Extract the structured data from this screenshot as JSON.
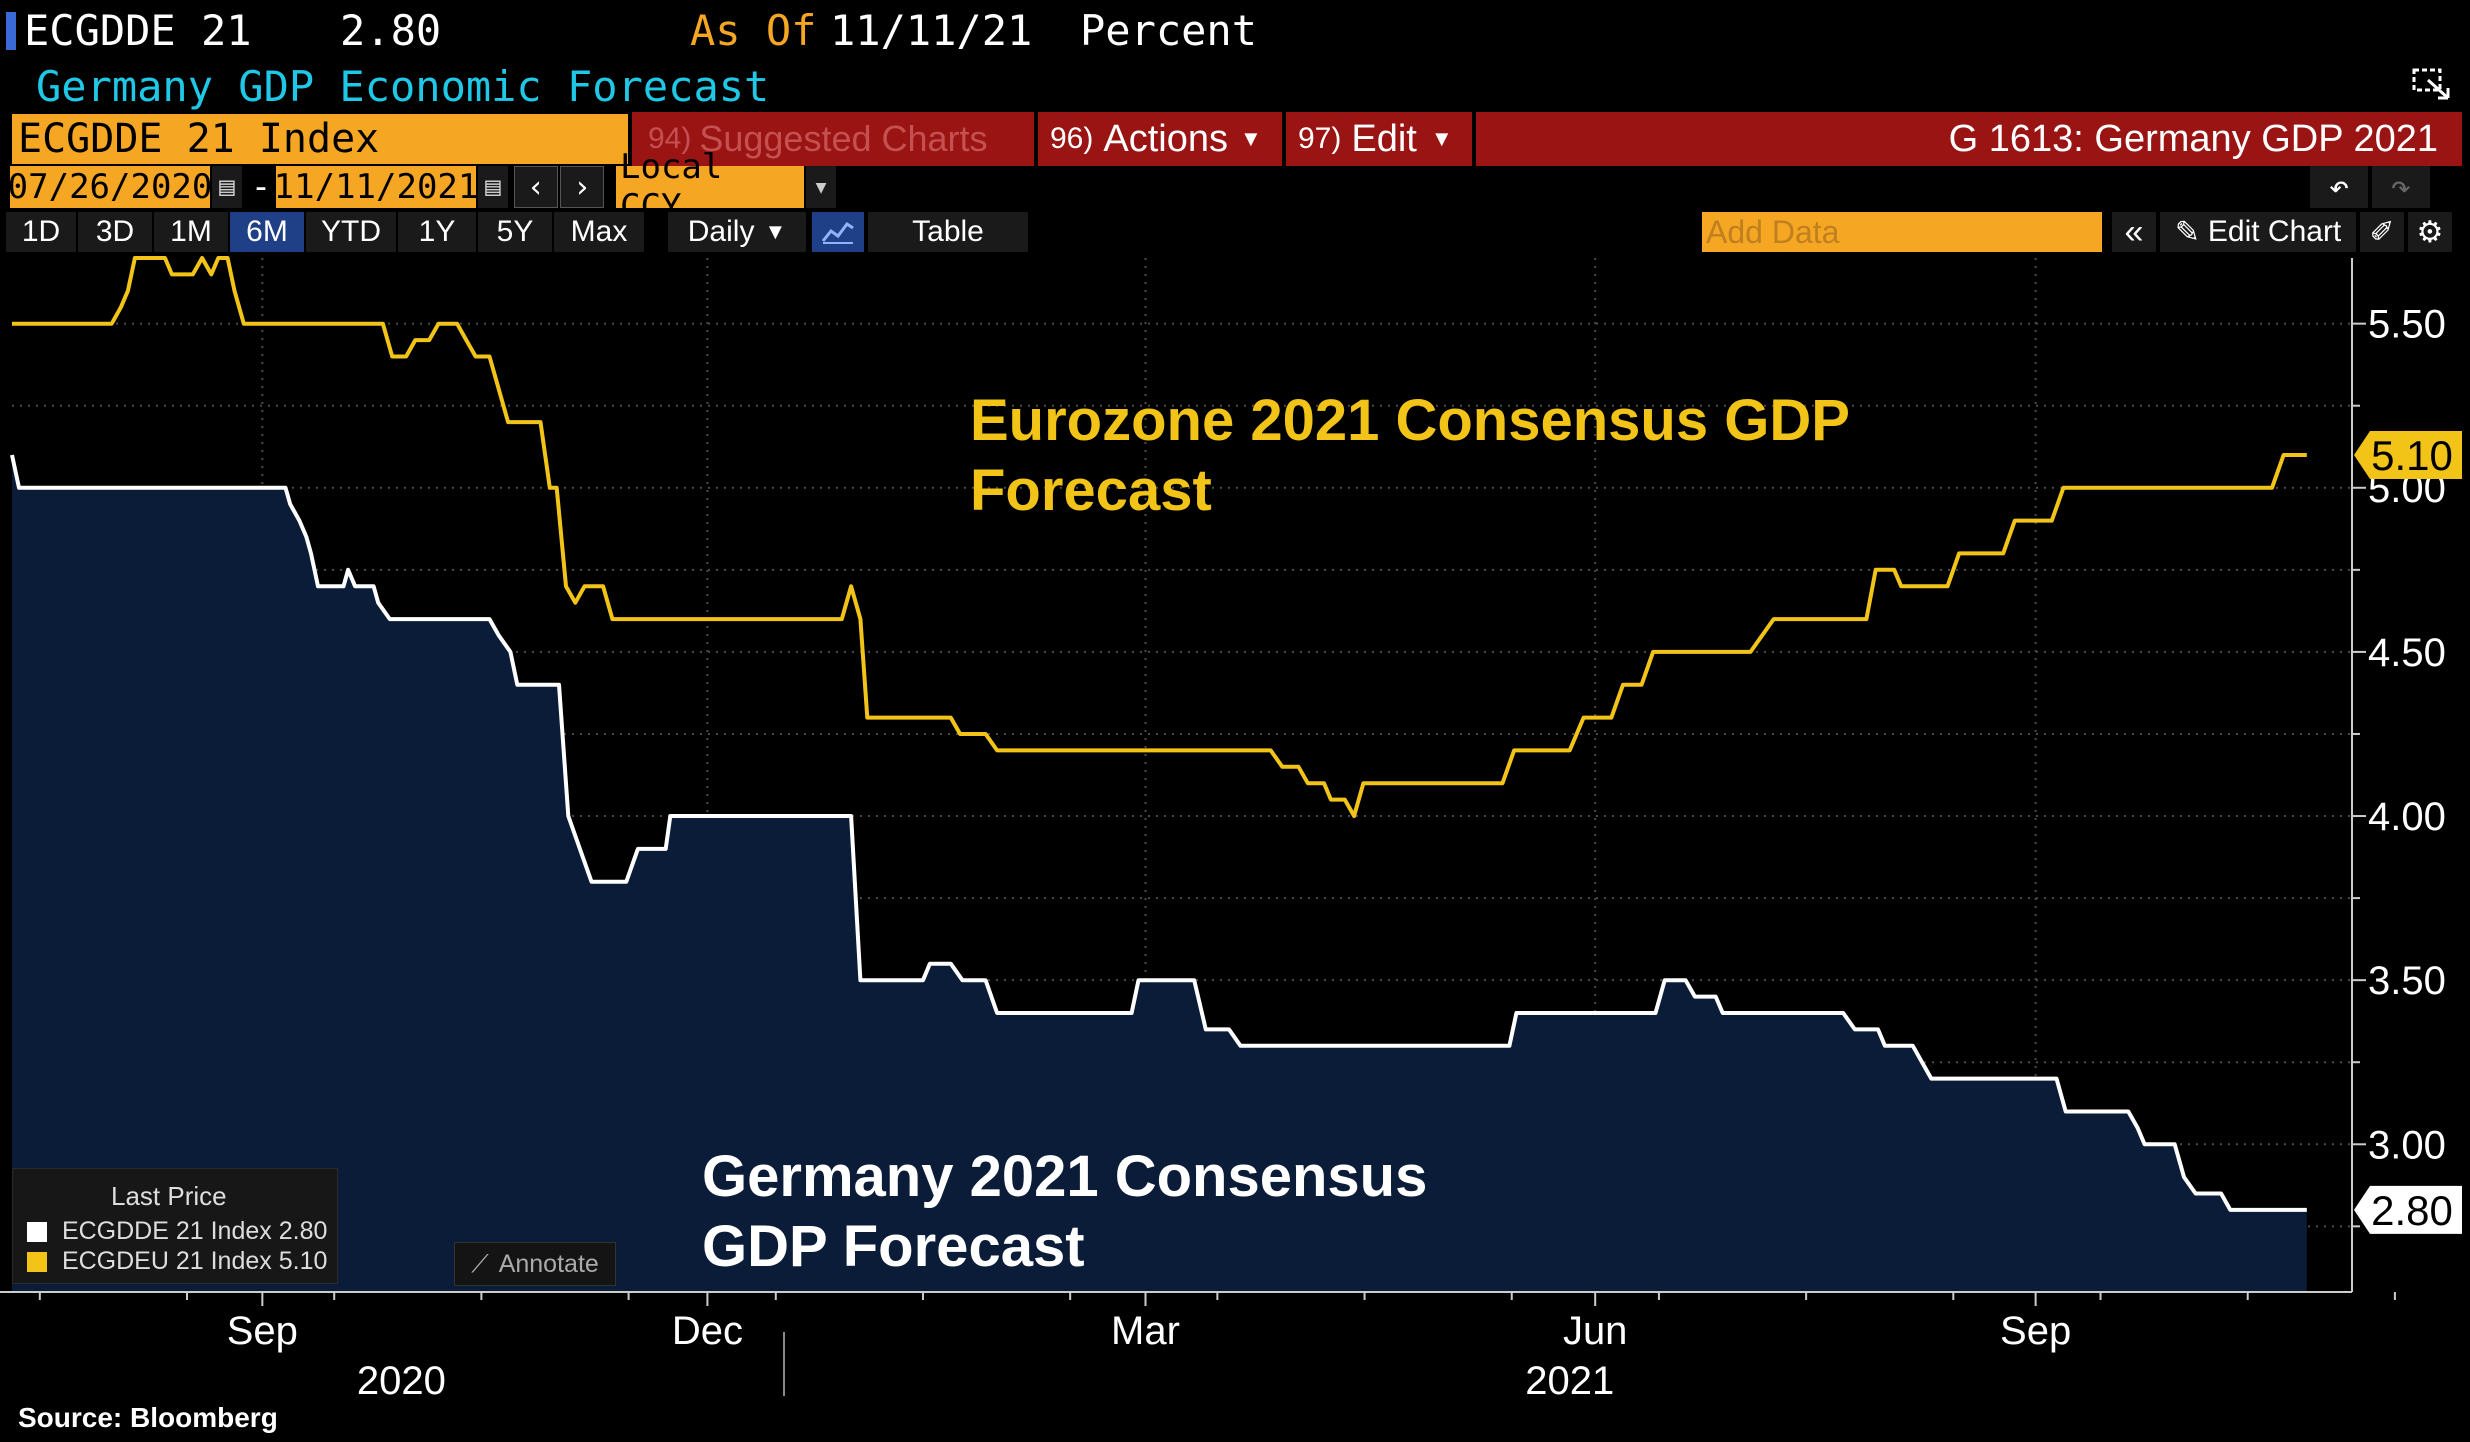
{
  "header": {
    "ticker": "ECGDDE 21",
    "last": "2.80",
    "as_of_label": "As Of",
    "as_of_date": "11/11/21",
    "unit": "Percent",
    "subtitle": "Germany GDP Economic Forecast"
  },
  "toolbar": {
    "security": "ECGDDE 21 Index",
    "suggested_num": "94)",
    "suggested": "Suggested Charts",
    "actions_num": "96)",
    "actions": "Actions",
    "edit_num": "97)",
    "edit": "Edit",
    "chart_name": "G 1613: Germany GDP 2021",
    "start_date": "07/26/2020",
    "dash": "-",
    "end_date": "11/11/2021",
    "currency": "Local CCY",
    "ranges": [
      "1D",
      "3D",
      "1M",
      "6M",
      "YTD",
      "1Y",
      "5Y",
      "Max"
    ],
    "active_range": "6M",
    "frequency": "Daily",
    "table": "Table",
    "add_data": "Add Data",
    "edit_chart": "Edit Chart"
  },
  "legend": {
    "title": "Last Price",
    "items": [
      {
        "label": "ECGDDE 21 Index 2.80",
        "color": "#ffffff"
      },
      {
        "label": "ECGDEU 21 Index 5.10",
        "color": "#f2c418"
      }
    ],
    "annotate": "Annotate"
  },
  "source": "Source: Bloomberg",
  "chart_data": {
    "type": "line",
    "title": "Germany GDP Economic Forecast",
    "ylim": [
      2.55,
      5.7
    ],
    "y_ticks": [
      "3.00",
      "3.50",
      "4.00",
      "4.50",
      "5.00",
      "5.50"
    ],
    "x_ticks": [
      {
        "label": "Sep",
        "t": 0.108
      },
      {
        "label": "Dec",
        "t": 0.3
      },
      {
        "label": "Mar",
        "t": 0.489
      },
      {
        "label": "Jun",
        "t": 0.683
      },
      {
        "label": "Sep",
        "t": 0.873
      }
    ],
    "x_years": [
      {
        "label": "2020",
        "t": 0.168
      },
      {
        "label": "2021",
        "t": 0.672
      }
    ],
    "annotations": {
      "eurozone": [
        "Eurozone 2021 Consensus GDP",
        "Forecast"
      ],
      "germany": [
        "Germany 2021 Consensus",
        "GDP Forecast"
      ]
    },
    "last_labels": {
      "eurozone": "5.10",
      "germany": "2.80"
    },
    "series": [
      {
        "name": "ECGDDE 21 Index",
        "color": "#ffffff",
        "fill": "#0b1c38",
        "points": [
          [
            0.0,
            5.1
          ],
          [
            0.003,
            5.0
          ],
          [
            0.118,
            5.0
          ],
          [
            0.12,
            4.95
          ],
          [
            0.124,
            4.9
          ],
          [
            0.127,
            4.85
          ],
          [
            0.129,
            4.8
          ],
          [
            0.132,
            4.7
          ],
          [
            0.143,
            4.7
          ],
          [
            0.145,
            4.75
          ],
          [
            0.148,
            4.7
          ],
          [
            0.156,
            4.7
          ],
          [
            0.158,
            4.65
          ],
          [
            0.163,
            4.6
          ],
          [
            0.206,
            4.6
          ],
          [
            0.21,
            4.55
          ],
          [
            0.215,
            4.5
          ],
          [
            0.218,
            4.4
          ],
          [
            0.236,
            4.4
          ],
          [
            0.24,
            4.0
          ],
          [
            0.245,
            3.9
          ],
          [
            0.25,
            3.8
          ],
          [
            0.265,
            3.8
          ],
          [
            0.27,
            3.9
          ],
          [
            0.282,
            3.9
          ],
          [
            0.284,
            4.0
          ],
          [
            0.362,
            4.0
          ],
          [
            0.366,
            3.5
          ],
          [
            0.393,
            3.5
          ],
          [
            0.396,
            3.55
          ],
          [
            0.405,
            3.55
          ],
          [
            0.41,
            3.5
          ],
          [
            0.42,
            3.5
          ],
          [
            0.425,
            3.4
          ],
          [
            0.483,
            3.4
          ],
          [
            0.486,
            3.5
          ],
          [
            0.51,
            3.5
          ],
          [
            0.515,
            3.35
          ],
          [
            0.525,
            3.35
          ],
          [
            0.53,
            3.3
          ],
          [
            0.646,
            3.3
          ],
          [
            0.649,
            3.4
          ],
          [
            0.709,
            3.4
          ],
          [
            0.713,
            3.5
          ],
          [
            0.722,
            3.5
          ],
          [
            0.726,
            3.45
          ],
          [
            0.735,
            3.45
          ],
          [
            0.738,
            3.4
          ],
          [
            0.79,
            3.4
          ],
          [
            0.795,
            3.35
          ],
          [
            0.805,
            3.35
          ],
          [
            0.808,
            3.3
          ],
          [
            0.82,
            3.3
          ],
          [
            0.824,
            3.25
          ],
          [
            0.828,
            3.2
          ],
          [
            0.882,
            3.2
          ],
          [
            0.886,
            3.1
          ],
          [
            0.913,
            3.1
          ],
          [
            0.917,
            3.05
          ],
          [
            0.92,
            3.0
          ],
          [
            0.933,
            3.0
          ],
          [
            0.937,
            2.9
          ],
          [
            0.942,
            2.85
          ],
          [
            0.953,
            2.85
          ],
          [
            0.957,
            2.8
          ],
          [
            0.99,
            2.8
          ]
        ]
      },
      {
        "name": "ECGDEU 21 Index",
        "color": "#f2c418",
        "fill": null,
        "points": [
          [
            0.0,
            5.5
          ],
          [
            0.043,
            5.5
          ],
          [
            0.047,
            5.55
          ],
          [
            0.05,
            5.6
          ],
          [
            0.053,
            5.7
          ],
          [
            0.066,
            5.7
          ],
          [
            0.069,
            5.65
          ],
          [
            0.078,
            5.65
          ],
          [
            0.082,
            5.7
          ],
          [
            0.086,
            5.65
          ],
          [
            0.089,
            5.7
          ],
          [
            0.093,
            5.7
          ],
          [
            0.096,
            5.6
          ],
          [
            0.1,
            5.5
          ],
          [
            0.16,
            5.5
          ],
          [
            0.164,
            5.4
          ],
          [
            0.17,
            5.4
          ],
          [
            0.174,
            5.45
          ],
          [
            0.18,
            5.45
          ],
          [
            0.184,
            5.5
          ],
          [
            0.192,
            5.5
          ],
          [
            0.196,
            5.45
          ],
          [
            0.2,
            5.4
          ],
          [
            0.206,
            5.4
          ],
          [
            0.21,
            5.3
          ],
          [
            0.214,
            5.2
          ],
          [
            0.228,
            5.2
          ],
          [
            0.232,
            5.0
          ],
          [
            0.235,
            5.0
          ],
          [
            0.239,
            4.7
          ],
          [
            0.243,
            4.65
          ],
          [
            0.247,
            4.7
          ],
          [
            0.255,
            4.7
          ],
          [
            0.259,
            4.6
          ],
          [
            0.358,
            4.6
          ],
          [
            0.362,
            4.7
          ],
          [
            0.366,
            4.6
          ],
          [
            0.369,
            4.3
          ],
          [
            0.405,
            4.3
          ],
          [
            0.409,
            4.25
          ],
          [
            0.42,
            4.25
          ],
          [
            0.425,
            4.2
          ],
          [
            0.543,
            4.2
          ],
          [
            0.548,
            4.15
          ],
          [
            0.555,
            4.15
          ],
          [
            0.559,
            4.1
          ],
          [
            0.566,
            4.1
          ],
          [
            0.569,
            4.05
          ],
          [
            0.575,
            4.05
          ],
          [
            0.579,
            4.0
          ],
          [
            0.583,
            4.1
          ],
          [
            0.643,
            4.1
          ],
          [
            0.648,
            4.2
          ],
          [
            0.672,
            4.2
          ],
          [
            0.678,
            4.3
          ],
          [
            0.69,
            4.3
          ],
          [
            0.695,
            4.4
          ],
          [
            0.703,
            4.4
          ],
          [
            0.708,
            4.5
          ],
          [
            0.75,
            4.5
          ],
          [
            0.755,
            4.55
          ],
          [
            0.76,
            4.6
          ],
          [
            0.8,
            4.6
          ],
          [
            0.804,
            4.75
          ],
          [
            0.812,
            4.75
          ],
          [
            0.815,
            4.7
          ],
          [
            0.835,
            4.7
          ],
          [
            0.84,
            4.8
          ],
          [
            0.859,
            4.8
          ],
          [
            0.864,
            4.9
          ],
          [
            0.88,
            4.9
          ],
          [
            0.885,
            5.0
          ],
          [
            0.975,
            5.0
          ],
          [
            0.98,
            5.1
          ],
          [
            0.99,
            5.1
          ]
        ]
      }
    ]
  }
}
